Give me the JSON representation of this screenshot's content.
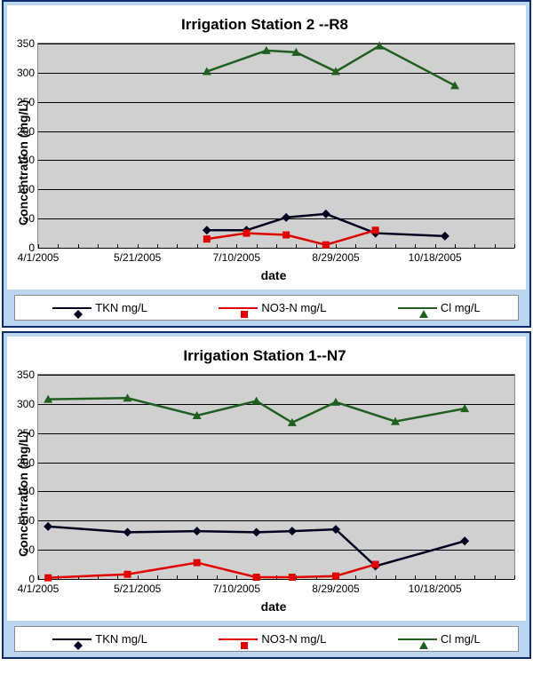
{
  "chart1": {
    "title": "Irrigation Station 2 --R8",
    "ylabel": "Concentration (mg/L)",
    "xlabel": "date",
    "ylim": [
      0,
      350
    ],
    "ytick_step": 50,
    "xlim": [
      0,
      240
    ],
    "xticks": [
      {
        "pos": 0,
        "label": "4/1/2005"
      },
      {
        "pos": 50,
        "label": "5/21/2005"
      },
      {
        "pos": 100,
        "label": "7/10/2005"
      },
      {
        "pos": 150,
        "label": "8/29/2005"
      },
      {
        "pos": 200,
        "label": "10/18/2005"
      }
    ],
    "xminor_every": 10,
    "plot_bg": "#d0d0d0",
    "series": [
      {
        "key": "tkn",
        "label": "TKN mg/L",
        "color": "#000020",
        "width": 2.5,
        "marker": "diamond",
        "pts": [
          {
            "x": 85,
            "y": 30
          },
          {
            "x": 105,
            "y": 30
          },
          {
            "x": 125,
            "y": 52
          },
          {
            "x": 145,
            "y": 58
          },
          {
            "x": 170,
            "y": 25
          },
          {
            "x": 205,
            "y": 20
          }
        ]
      },
      {
        "key": "no3",
        "label": "NO3-N mg/L",
        "color": "#e00000",
        "width": 2.5,
        "marker": "square",
        "pts": [
          {
            "x": 85,
            "y": 15
          },
          {
            "x": 105,
            "y": 25
          },
          {
            "x": 125,
            "y": 22
          },
          {
            "x": 145,
            "y": 5
          },
          {
            "x": 170,
            "y": 30
          }
        ]
      },
      {
        "key": "cl",
        "label": "Cl mg/L",
        "color": "#1f5f1f",
        "width": 2.5,
        "marker": "triangle",
        "pts": [
          {
            "x": 85,
            "y": 302
          },
          {
            "x": 115,
            "y": 338
          },
          {
            "x": 130,
            "y": 335
          },
          {
            "x": 150,
            "y": 302
          },
          {
            "x": 172,
            "y": 346
          },
          {
            "x": 210,
            "y": 278
          }
        ]
      }
    ]
  },
  "chart2": {
    "title": "Irrigation Station 1--N7",
    "ylabel": "Concentration (mg/L)",
    "xlabel": "date",
    "ylim": [
      0,
      350
    ],
    "ytick_step": 50,
    "xlim": [
      0,
      240
    ],
    "xticks": [
      {
        "pos": 0,
        "label": "4/1/2005"
      },
      {
        "pos": 50,
        "label": "5/21/2005"
      },
      {
        "pos": 100,
        "label": "7/10/2005"
      },
      {
        "pos": 150,
        "label": "8/29/2005"
      },
      {
        "pos": 200,
        "label": "10/18/2005"
      }
    ],
    "xminor_every": 10,
    "plot_bg": "#d0d0d0",
    "series": [
      {
        "key": "tkn",
        "label": "TKN mg/L",
        "color": "#000020",
        "width": 2.5,
        "marker": "diamond",
        "pts": [
          {
            "x": 5,
            "y": 90
          },
          {
            "x": 45,
            "y": 80
          },
          {
            "x": 80,
            "y": 82
          },
          {
            "x": 110,
            "y": 80
          },
          {
            "x": 128,
            "y": 82
          },
          {
            "x": 150,
            "y": 85
          },
          {
            "x": 170,
            "y": 22
          },
          {
            "x": 215,
            "y": 65
          }
        ]
      },
      {
        "key": "no3",
        "label": "NO3-N mg/L",
        "color": "#e00000",
        "width": 2.5,
        "marker": "square",
        "pts": [
          {
            "x": 5,
            "y": 2
          },
          {
            "x": 45,
            "y": 8
          },
          {
            "x": 80,
            "y": 28
          },
          {
            "x": 110,
            "y": 3
          },
          {
            "x": 128,
            "y": 3
          },
          {
            "x": 150,
            "y": 5
          },
          {
            "x": 170,
            "y": 25
          }
        ]
      },
      {
        "key": "cl",
        "label": "Cl mg/L",
        "color": "#1f5f1f",
        "width": 2.5,
        "marker": "triangle",
        "pts": [
          {
            "x": 5,
            "y": 308
          },
          {
            "x": 45,
            "y": 310
          },
          {
            "x": 80,
            "y": 280
          },
          {
            "x": 110,
            "y": 305
          },
          {
            "x": 128,
            "y": 268
          },
          {
            "x": 150,
            "y": 303
          },
          {
            "x": 180,
            "y": 270
          },
          {
            "x": 215,
            "y": 292
          }
        ]
      }
    ]
  }
}
